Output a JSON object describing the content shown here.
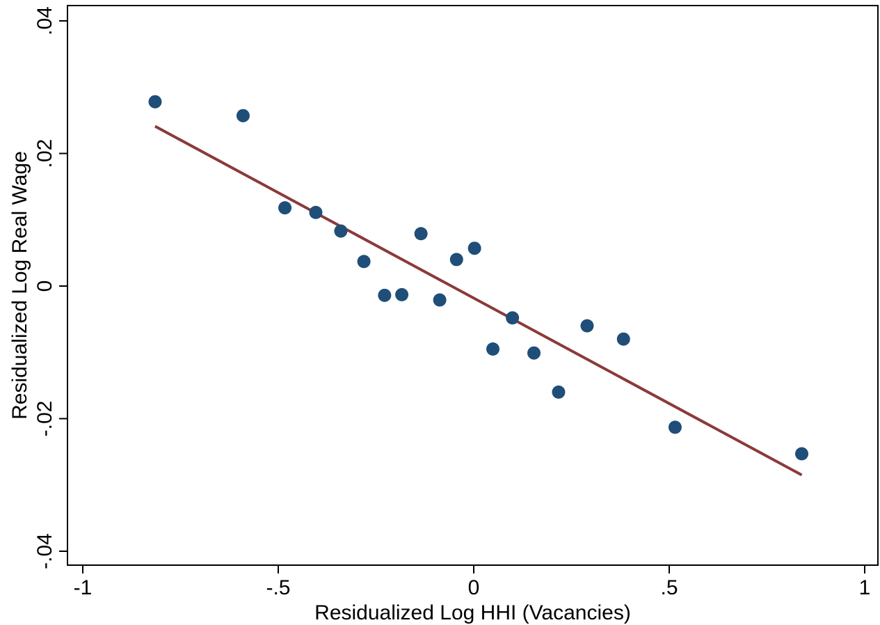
{
  "chart_data": {
    "type": "scatter",
    "xlabel": "Residualized Log HHI (Vacancies)",
    "ylabel": "Residualized Log Real Wage",
    "xlim": [
      -1,
      1
    ],
    "ylim": [
      -0.04,
      0.04
    ],
    "x_ticks": [
      {
        "value": -1,
        "label": "-1"
      },
      {
        "value": -0.5,
        "label": "-.5"
      },
      {
        "value": 0,
        "label": "0"
      },
      {
        "value": 0.5,
        "label": ".5"
      },
      {
        "value": 1,
        "label": "1"
      }
    ],
    "y_ticks": [
      {
        "value": -0.04,
        "label": "-.04"
      },
      {
        "value": -0.02,
        "label": "-.02"
      },
      {
        "value": 0,
        "label": "0"
      },
      {
        "value": 0.02,
        "label": ".02"
      },
      {
        "value": 0.04,
        "label": ".04"
      }
    ],
    "grid": false,
    "points": [
      {
        "x": -0.815,
        "y": 0.0278
      },
      {
        "x": -0.59,
        "y": 0.0257
      },
      {
        "x": -0.483,
        "y": 0.0118
      },
      {
        "x": -0.404,
        "y": 0.0111
      },
      {
        "x": -0.34,
        "y": 0.0083
      },
      {
        "x": -0.281,
        "y": 0.0037
      },
      {
        "x": -0.228,
        "y": -0.0014
      },
      {
        "x": -0.184,
        "y": -0.0013
      },
      {
        "x": -0.135,
        "y": 0.0079
      },
      {
        "x": -0.087,
        "y": -0.0021
      },
      {
        "x": -0.044,
        "y": 0.004
      },
      {
        "x": 0.002,
        "y": 0.0057
      },
      {
        "x": 0.049,
        "y": -0.0095
      },
      {
        "x": 0.099,
        "y": -0.0048
      },
      {
        "x": 0.154,
        "y": -0.0101
      },
      {
        "x": 0.217,
        "y": -0.016
      },
      {
        "x": 0.29,
        "y": -0.006
      },
      {
        "x": 0.383,
        "y": -0.008
      },
      {
        "x": 0.515,
        "y": -0.0213
      },
      {
        "x": 0.839,
        "y": -0.0253
      }
    ],
    "fit_line": {
      "x": [
        -0.815,
        0.839
      ],
      "y": [
        0.0241,
        -0.0285
      ]
    },
    "colors": {
      "points": "#1f4e79",
      "fit_line": "#8b3a3a",
      "axes": "#000000"
    }
  }
}
